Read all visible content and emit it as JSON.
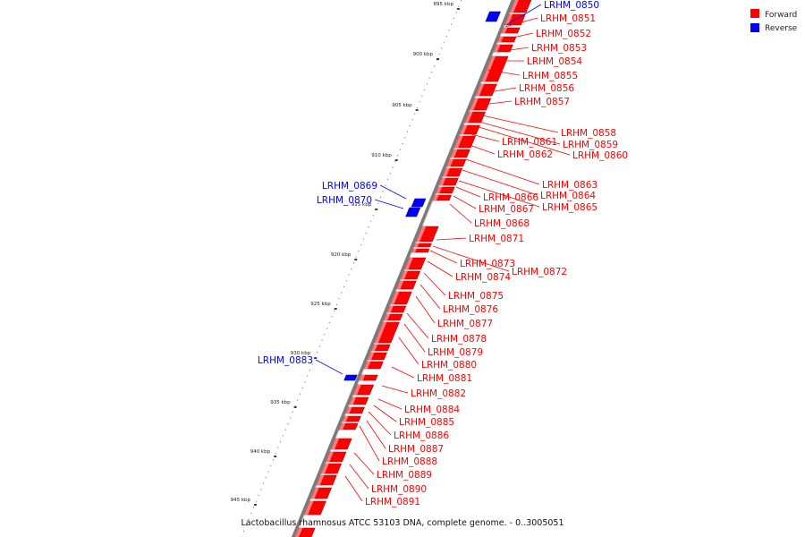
{
  "caption": "Lactobacillus rhamnosus ATCC 53103 DNA, complete genome. - 0..3005051",
  "legend": [
    {
      "label": "Forward",
      "color": "#ff0000"
    },
    {
      "label": "Reverse",
      "color": "#0000ff"
    }
  ],
  "colors": {
    "forward": "#ff0000",
    "reverse": "#0000ff",
    "backbone": "#888888"
  },
  "ticks": [
    "895 kbp",
    "900 kbp",
    "905 kbp",
    "910 kbp",
    "915 kbp",
    "920 kbp",
    "925 kbp",
    "930 kbp",
    "935 kbp",
    "940 kbp",
    "945 kbp"
  ],
  "genes_forward": [
    "LRHM_0851",
    "LRHM_0852",
    "LRHM_0853",
    "LRHM_0854",
    "LRHM_0855",
    "LRHM_0856",
    "LRHM_0857",
    "LRHM_0858",
    "LRHM_0859",
    "LRHM_0860",
    "LRHM_0861",
    "LRHM_0862",
    "LRHM_0863",
    "LRHM_0864",
    "LRHM_0865",
    "LRHM_0866",
    "LRHM_0867",
    "LRHM_0868",
    "LRHM_0871",
    "LRHM_0872",
    "LRHM_0873",
    "LRHM_0874",
    "LRHM_0875",
    "LRHM_0876",
    "LRHM_0877",
    "LRHM_0878",
    "LRHM_0879",
    "LRHM_0880",
    "LRHM_0881",
    "LRHM_0882",
    "LRHM_0884",
    "LRHM_0885",
    "LRHM_0886",
    "LRHM_0887",
    "LRHM_0888",
    "LRHM_0889",
    "LRHM_0890",
    "LRHM_0891"
  ],
  "genes_reverse": [
    "LRHM_0850",
    "LRHM_0869",
    "LRHM_0870",
    "LRHM_0883"
  ]
}
